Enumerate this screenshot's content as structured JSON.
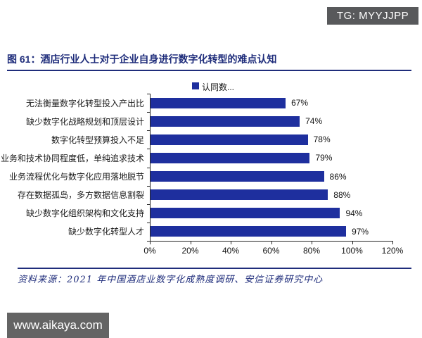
{
  "header": {
    "badge": "TG: MYYJJPP"
  },
  "figure_title": "图 61：酒店行业人士对于企业自身进行数字化转型的难点认知",
  "chart_data": {
    "type": "bar",
    "orientation": "horizontal",
    "legend": [
      {
        "label": "认同数...",
        "color": "#1e2f9e"
      }
    ],
    "legend_position": "top",
    "categories": [
      "无法衡量数字化转型投入产出比",
      "缺少数字化战略规划和顶层设计",
      "数字化转型预算投入不足",
      "业务和技术协同程度低，单纯追求技术",
      "业务流程优化与数字化应用落地脱节",
      "存在数据孤岛，多方数据信息割裂",
      "缺少数字化组织架构和文化支持",
      "缺少数字化转型人才"
    ],
    "values": [
      67,
      74,
      78,
      79,
      86,
      88,
      94,
      97
    ],
    "value_labels": [
      "67%",
      "74%",
      "78%",
      "79%",
      "86%",
      "88%",
      "94%",
      "97%"
    ],
    "x_ticks": [
      "0%",
      "20%",
      "40%",
      "60%",
      "80%",
      "100%",
      "120%"
    ],
    "xlim": [
      0,
      120
    ],
    "grid": false,
    "bar_color": "#1e2f9e",
    "axis_color": "#262626"
  },
  "footer": {
    "source": "资料来源：2021 年中国酒店业数字化成熟度调研、安信证券研究中心"
  },
  "watermark": {
    "url_label": "www.aikaya.com"
  },
  "colors": {
    "bar_blue": "#1e2f9e",
    "title_navy": "#1f2d7b",
    "badge_gray": "#58595b",
    "watermark_gray": "#646464"
  }
}
